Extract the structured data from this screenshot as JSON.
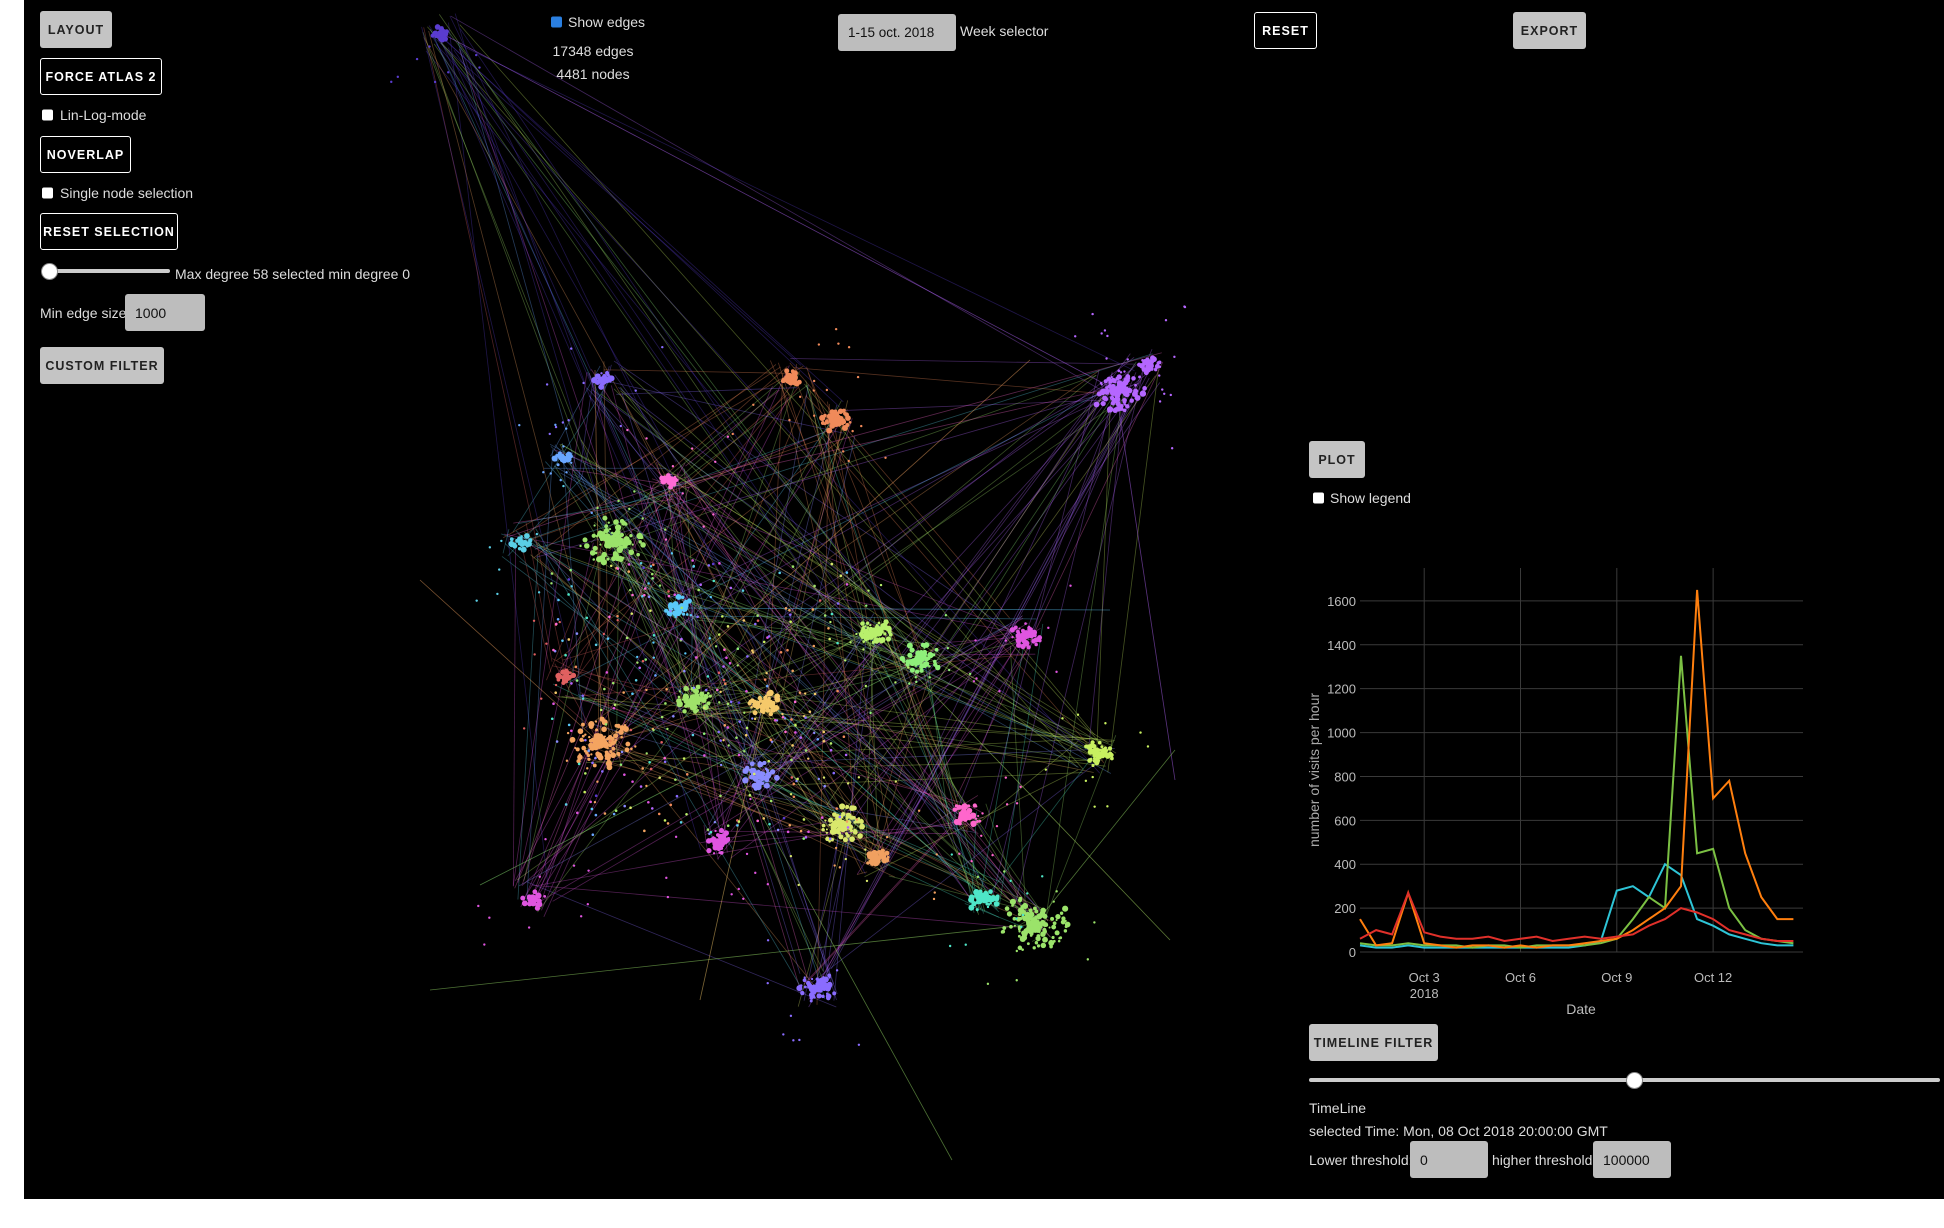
{
  "controls": {
    "layout": "LAYOUT",
    "force_atlas": "FORCE ATLAS 2",
    "lin_log": "Lin-Log-mode",
    "noverlap": "NOVERLAP",
    "single_node": "Single node selection",
    "reset_selection": "RESET SELECTION",
    "degree_label": "Max degree 58 selected min degree 0",
    "min_edge_label": "Min edge size:",
    "min_edge_value": "1000",
    "custom_filter": "CUSTOM FILTER",
    "show_edges": "Show edges",
    "edges_count": "17348 edges",
    "nodes_count": "4481 nodes",
    "week_value": "1-15 oct. 2018",
    "week_label": "Week selector",
    "reset": "RESET",
    "export": "EXPORT",
    "plot": "PLOT",
    "show_legend": "Show legend",
    "timeline_filter": "TIMELINE FILTER",
    "timeline": "TimeLine",
    "selected_time": "selected Time: Mon, 08 Oct 2018 20:00:00 GMT",
    "lower_label": "Lower threshold:",
    "lower_value": "0",
    "higher_label": "higher threshold:",
    "higher_value": "100000"
  },
  "chart_data": {
    "type": "line",
    "xlabel": "Date",
    "ylabel": "number of visits per hour",
    "x": [
      1,
      1.5,
      2,
      2.5,
      3,
      3.5,
      4,
      4.5,
      5,
      5.5,
      6,
      6.5,
      7,
      7.5,
      8,
      8.5,
      9,
      9.5,
      10,
      10.5,
      11,
      11.5,
      12,
      12.5,
      13,
      13.5,
      14,
      14.5
    ],
    "xlim": [
      1,
      14.8
    ],
    "xticks": [
      {
        "value": 3,
        "label": "Oct 3"
      },
      {
        "value": 6,
        "label": "Oct 6"
      },
      {
        "value": 9,
        "label": "Oct 9"
      },
      {
        "value": 12,
        "label": "Oct 12"
      }
    ],
    "x_year_label": "2018",
    "ylim": [
      0,
      1750
    ],
    "yticks": [
      0,
      200,
      400,
      600,
      800,
      1000,
      1200,
      1400,
      1600
    ],
    "grid": true,
    "series": [
      {
        "color": "#2ec4d6",
        "values": [
          30,
          20,
          20,
          30,
          20,
          20,
          20,
          20,
          20,
          20,
          20,
          20,
          20,
          20,
          30,
          50,
          280,
          300,
          250,
          400,
          350,
          150,
          120,
          80,
          60,
          40,
          30,
          30
        ]
      },
      {
        "color": "#7bc043",
        "values": [
          40,
          30,
          30,
          40,
          30,
          30,
          30,
          20,
          30,
          30,
          20,
          30,
          30,
          30,
          30,
          40,
          60,
          150,
          250,
          200,
          1350,
          450,
          470,
          200,
          100,
          60,
          50,
          40
        ]
      },
      {
        "color": "#ff7f0e",
        "values": [
          150,
          30,
          40,
          270,
          40,
          30,
          20,
          30,
          30,
          20,
          30,
          20,
          30,
          30,
          40,
          50,
          60,
          100,
          150,
          200,
          300,
          1650,
          700,
          780,
          450,
          250,
          150,
          150
        ]
      },
      {
        "color": "#e0302a",
        "values": [
          60,
          100,
          80,
          270,
          90,
          70,
          60,
          60,
          70,
          50,
          60,
          70,
          50,
          60,
          70,
          60,
          70,
          80,
          120,
          150,
          200,
          180,
          150,
          100,
          80,
          60,
          50,
          50
        ]
      }
    ]
  }
}
